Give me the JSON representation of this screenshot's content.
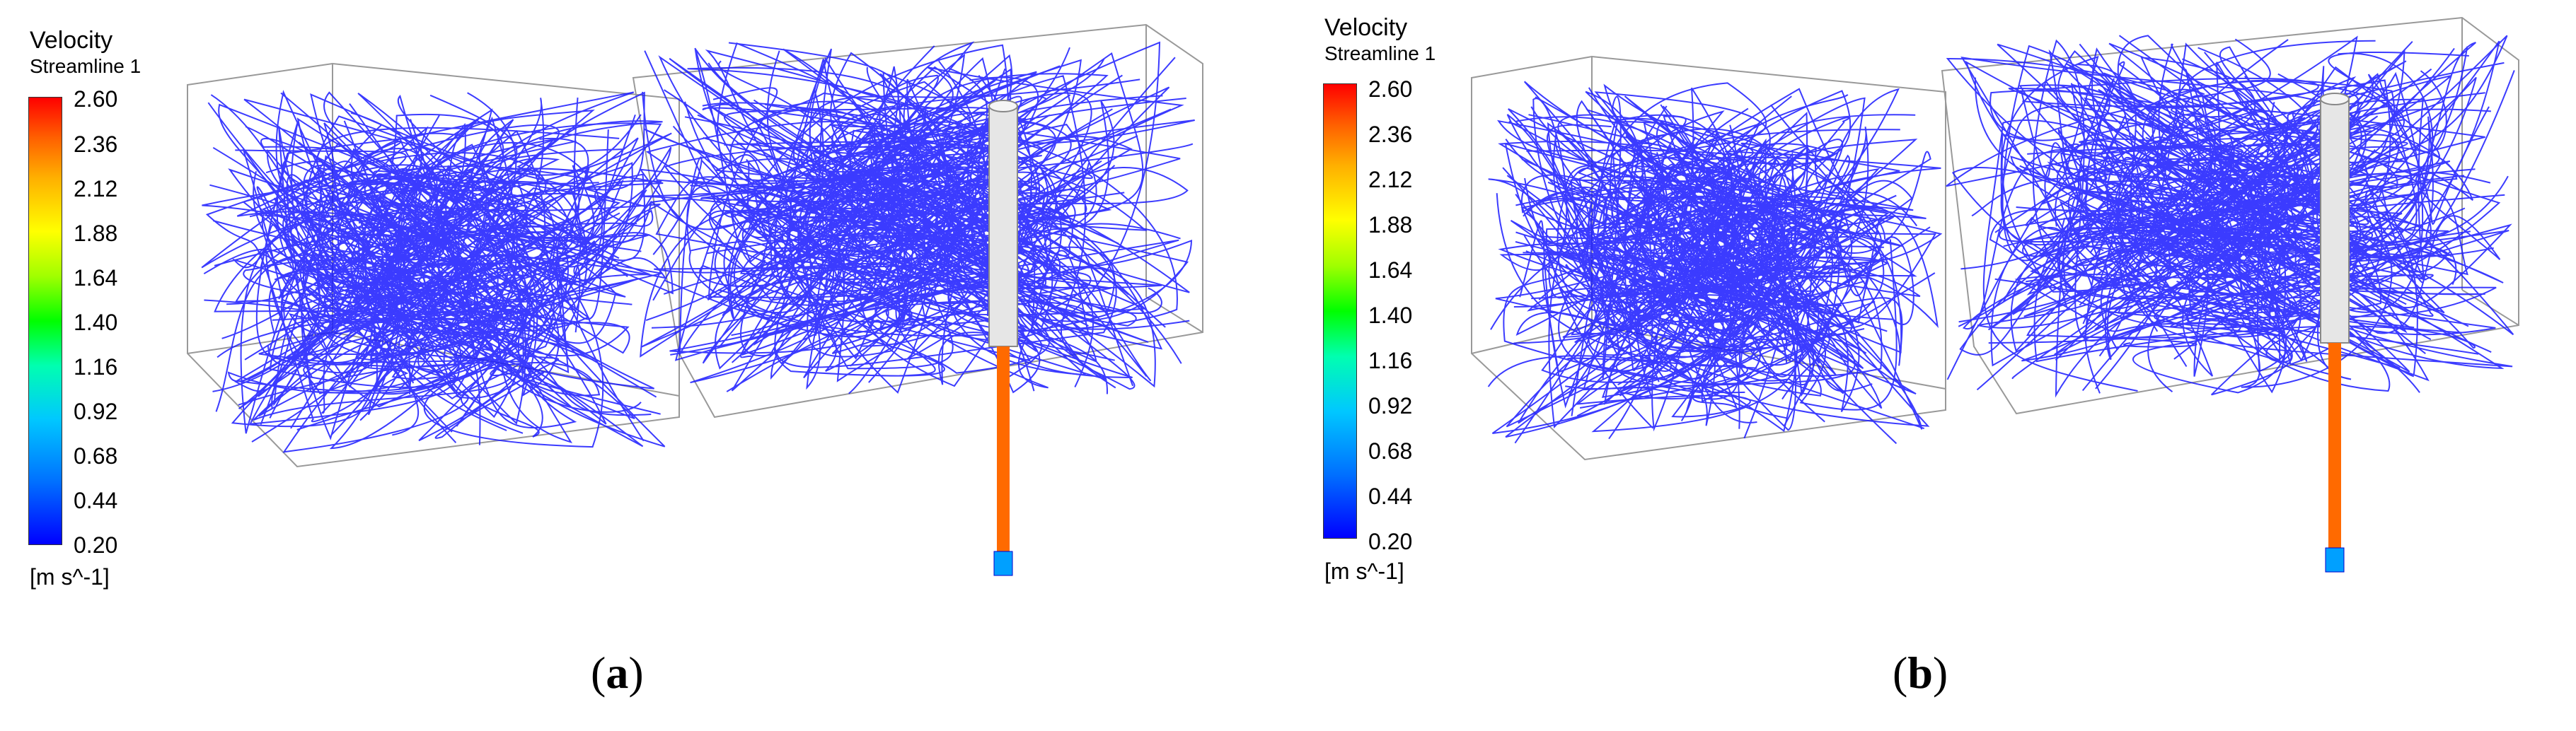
{
  "legend": {
    "title": "Velocity",
    "subtitle": "Streamline 1",
    "ticks": [
      "2.60",
      "2.36",
      "2.12",
      "1.88",
      "1.64",
      "1.40",
      "1.16",
      "0.92",
      "0.68",
      "0.44",
      "0.20"
    ],
    "unit": "[m s^-1]",
    "colors": [
      "#0000ff",
      "#00c8ff",
      "#00ff00",
      "#ffff00",
      "#ff0000"
    ]
  },
  "panels": [
    {
      "label": "a",
      "label_open": "(",
      "label_close": ")"
    },
    {
      "label": "b",
      "label_open": "(",
      "label_close": ")"
    }
  ],
  "streamline_color": "#1a1aff"
}
